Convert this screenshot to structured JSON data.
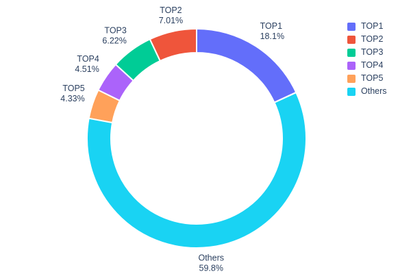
{
  "chart_data": {
    "type": "pie",
    "subtype": "donut",
    "hole": 0.78,
    "title": "",
    "legend_position": "top-right",
    "background": "#ffffff",
    "text_color": "#2a3f5f",
    "segments": [
      {
        "label": "TOP1",
        "value_pct": 18.1,
        "display": "18.1%",
        "color": "#636EFA"
      },
      {
        "label": "TOP2",
        "value_pct": 7.01,
        "display": "7.01%",
        "color": "#EF553B"
      },
      {
        "label": "TOP3",
        "value_pct": 6.22,
        "display": "6.22%",
        "color": "#00CC96"
      },
      {
        "label": "TOP4",
        "value_pct": 4.51,
        "display": "4.51%",
        "color": "#AB63FA"
      },
      {
        "label": "TOP5",
        "value_pct": 4.33,
        "display": "4.33%",
        "color": "#FFA15A"
      },
      {
        "label": "Others",
        "value_pct": 59.8,
        "display": "59.8%",
        "color": "#19D3F3"
      }
    ],
    "legend_entries": [
      "TOP1",
      "TOP2",
      "TOP3",
      "TOP4",
      "TOP5",
      "Others"
    ]
  }
}
